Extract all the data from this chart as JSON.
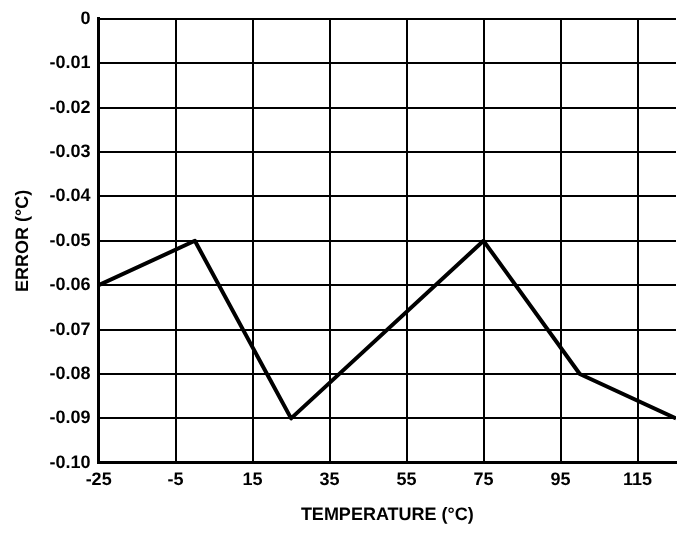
{
  "chart_data": {
    "type": "line",
    "xlabel": "TEMPERATURE (°C)",
    "ylabel": "ERROR (°C)",
    "x": [
      -25,
      0,
      25,
      75,
      100,
      125
    ],
    "series": [
      {
        "color": "#000000",
        "values": [
          -0.06,
          -0.05,
          -0.09,
          -0.05,
          -0.08,
          -0.09
        ]
      }
    ],
    "xlim": [
      -25,
      125
    ],
    "xticks": [
      -25,
      -5,
      15,
      35,
      55,
      75,
      95,
      115
    ],
    "ylim": [
      -0.1,
      0
    ],
    "yticks": [
      {
        "value": -0.1,
        "label": "-0.10"
      },
      -0.09,
      -0.08,
      -0.07,
      -0.06,
      -0.05,
      -0.04,
      -0.03,
      -0.02,
      -0.01,
      0
    ],
    "grid": true,
    "legend": false,
    "marker": "none",
    "line_style": "solid"
  }
}
